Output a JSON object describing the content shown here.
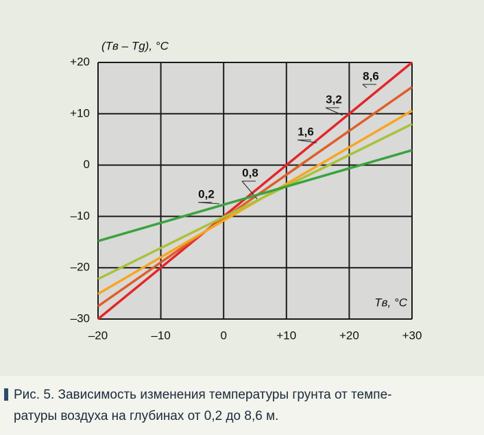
{
  "chart_data": {
    "type": "line",
    "y_label": "(Tв – Tg), °C",
    "x_label": "Tв, °C",
    "x": [
      -20,
      30
    ],
    "series": [
      {
        "name": "8,6",
        "color": "#e3262a",
        "values": [
          -30,
          20
        ]
      },
      {
        "name": "3,2",
        "color": "#de5f2a",
        "values": [
          -27.5,
          15.2
        ]
      },
      {
        "name": "1,6",
        "color": "#f5a623",
        "values": [
          -25.1,
          10.6
        ]
      },
      {
        "name": "0,8",
        "color": "#a8c23c",
        "values": [
          -22.2,
          8.0
        ]
      },
      {
        "name": "0,2",
        "color": "#3aa33c",
        "values": [
          -14.8,
          2.9
        ]
      }
    ],
    "xlim": [
      -20,
      30
    ],
    "xticks": [
      {
        "value": -20,
        "label": "–20"
      },
      {
        "value": -10,
        "label": "–10"
      },
      0,
      {
        "value": 10,
        "label": "+10"
      },
      {
        "value": 20,
        "label": "+20"
      },
      {
        "value": 30,
        "label": "+30"
      }
    ],
    "ylim": [
      -30,
      20
    ],
    "yticks": [
      {
        "value": -30,
        "label": "–30"
      },
      {
        "value": -20,
        "label": "–20"
      },
      {
        "value": -10,
        "label": "–10"
      },
      0,
      {
        "value": 10,
        "label": "+10"
      },
      {
        "value": 20,
        "label": "+20"
      }
    ],
    "grid": true
  },
  "caption": [
    "Рис. 5. Зависимость изменения температуры грунта от темпе-",
    "ратуры воздуха на глубинах от 0,2 до 8,6 м."
  ]
}
